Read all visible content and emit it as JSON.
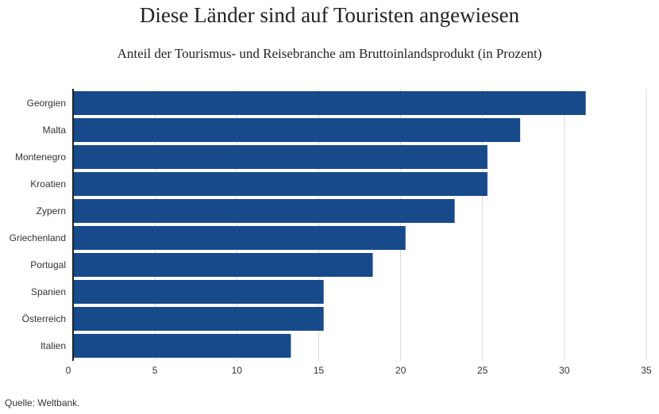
{
  "chart_data": {
    "type": "bar",
    "orientation": "horizontal",
    "title": "Diese Länder sind auf Touristen angewiesen",
    "subtitle": "Anteil der Tourismus- und Reisebranche am Bruttoinlandsprodukt (in Prozent)",
    "categories": [
      "Georgien",
      "Malta",
      "Montenegro",
      "Kroatien",
      "Zypern",
      "Griechenland",
      "Portugal",
      "Spanien",
      "Österreich",
      "Italien"
    ],
    "values": [
      31.3,
      27.3,
      25.3,
      25.3,
      23.3,
      20.3,
      18.3,
      15.3,
      15.3,
      13.3
    ],
    "xlim": [
      0,
      35
    ],
    "x_ticks": [
      "0",
      "5",
      "10",
      "15",
      "20",
      "25",
      "30",
      "35"
    ],
    "x_tick_values": [
      0,
      5,
      10,
      15,
      20,
      25,
      30,
      35
    ],
    "grid": true,
    "bar_color": "#174a8b",
    "grid_color": "#d8d8d8",
    "axis_color": "#222222"
  },
  "source": "Quelle: Weltbank."
}
